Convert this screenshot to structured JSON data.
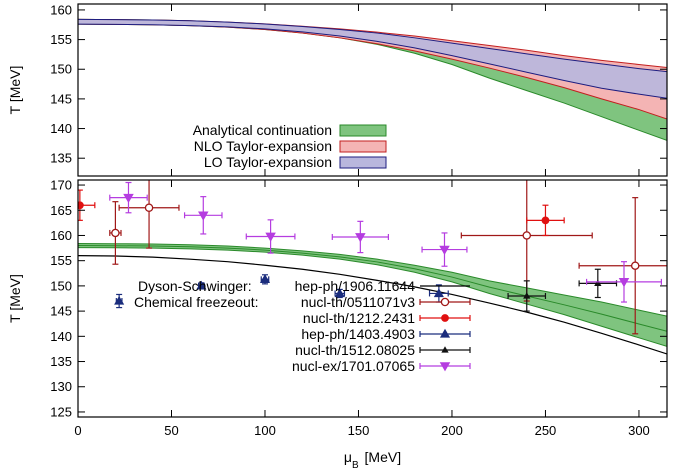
{
  "colors": {
    "ac_fill": "#7fc47f",
    "ac_line": "#2a8a2a",
    "nlo_fill": "#f4b4b4",
    "nlo_line": "#c21f1f",
    "lo_fill": "#b9b7dd",
    "lo_line": "#1d1d80",
    "ds_line": "#000000",
    "series_open_darkred": "#a01818",
    "series_red": "#e01010",
    "series_blue": "#1b2d7d",
    "series_black": "#111111",
    "series_violet": "#b53de0"
  },
  "chart_data": [
    {
      "type": "area",
      "xlim": [
        0,
        315
      ],
      "ylim": [
        132,
        161
      ],
      "yticks": [
        "135",
        "140",
        "145",
        "150",
        "155",
        "160"
      ],
      "xlabel": "",
      "ylabel": "T [MeV]",
      "grid": false,
      "legend_placement": "bottom-center",
      "x": [
        0,
        20,
        40,
        60,
        80,
        100,
        120,
        140,
        160,
        180,
        200,
        220,
        240,
        260,
        280,
        300,
        315
      ],
      "series": [
        {
          "name": "Analytical continuation",
          "lower": [
            157.6,
            157.57,
            157.5,
            157.35,
            157.1,
            156.7,
            156.1,
            155.3,
            154.2,
            152.7,
            150.8,
            148.5,
            146.4,
            144.3,
            142.0,
            139.7,
            138.0
          ],
          "upper": [
            158.4,
            158.37,
            158.3,
            158.15,
            157.9,
            157.5,
            156.95,
            156.25,
            155.3,
            154.1,
            152.7,
            151.0,
            149.6,
            148.2,
            146.8,
            145.2,
            144.0
          ]
        },
        {
          "name": "NLO Taylor-expansion",
          "lower": [
            157.6,
            157.57,
            157.5,
            157.35,
            157.1,
            156.7,
            156.1,
            155.3,
            154.3,
            153.1,
            151.7,
            150.2,
            148.6,
            146.9,
            145.0,
            143.2,
            141.6
          ],
          "upper": [
            158.4,
            158.37,
            158.3,
            158.17,
            157.95,
            157.65,
            157.25,
            156.8,
            156.25,
            155.6,
            154.8,
            154.0,
            153.2,
            152.3,
            151.5,
            150.8,
            150.3
          ]
        },
        {
          "name": "LO Taylor-expansion",
          "lower": [
            157.6,
            157.57,
            157.5,
            157.36,
            157.15,
            156.8,
            156.3,
            155.6,
            154.7,
            153.6,
            152.3,
            150.9,
            149.5,
            148.1,
            146.8,
            145.8,
            145.1
          ],
          "upper": [
            158.4,
            158.37,
            158.3,
            158.17,
            157.95,
            157.63,
            157.2,
            156.7,
            156.1,
            155.3,
            154.4,
            153.5,
            152.6,
            151.7,
            150.9,
            150.1,
            149.6
          ]
        }
      ]
    },
    {
      "type": "scatter",
      "xlim": [
        0,
        315
      ],
      "ylim": [
        124,
        171
      ],
      "xticks": [
        "0",
        "50",
        "100",
        "150",
        "200",
        "250",
        "300"
      ],
      "yticks": [
        "125",
        "130",
        "135",
        "140",
        "145",
        "150",
        "155",
        "160",
        "165",
        "170"
      ],
      "xlabel": "μ_B [MeV]",
      "ylabel": "T [MeV]",
      "grid": false,
      "legend_placement": "bottom-right",
      "band": {
        "x": [
          0,
          20,
          40,
          60,
          80,
          100,
          120,
          140,
          160,
          180,
          200,
          220,
          240,
          260,
          280,
          300,
          315
        ],
        "lower": [
          157.6,
          157.57,
          157.5,
          157.35,
          157.1,
          156.7,
          156.1,
          155.3,
          154.2,
          152.7,
          150.8,
          148.5,
          146.4,
          144.3,
          142.0,
          139.7,
          138.0
        ],
        "upper": [
          158.4,
          158.37,
          158.3,
          158.15,
          157.9,
          157.5,
          156.95,
          156.25,
          155.3,
          154.1,
          152.7,
          151.0,
          149.6,
          148.2,
          146.8,
          145.2,
          144.0
        ],
        "center": [
          158.0,
          157.97,
          157.9,
          157.75,
          157.5,
          157.1,
          156.5,
          155.75,
          154.75,
          153.4,
          151.75,
          149.75,
          148.0,
          146.25,
          144.4,
          142.45,
          141.0
        ]
      },
      "dyson_schwinger": {
        "legend_prefix": "Dyson-Schwinger:",
        "name": "hep-ph/1906.11644",
        "x": [
          0,
          20,
          40,
          60,
          80,
          100,
          120,
          140,
          160,
          180,
          200,
          220,
          240,
          260,
          280,
          300,
          315
        ],
        "y": [
          156.0,
          155.93,
          155.7,
          155.3,
          154.8,
          154.1,
          153.3,
          152.3,
          151.1,
          149.8,
          148.3,
          146.6,
          144.8,
          142.8,
          140.6,
          138.3,
          136.5
        ]
      },
      "legend_group_label": "Chemical freezeout:",
      "series": [
        {
          "name": "nucl-th/0511071v3",
          "marker": "open-circle",
          "points": [
            {
              "x": 20,
              "y": 160.5,
              "xerr": 3,
              "yerr": 6.2
            },
            {
              "x": 38,
              "y": 165.5,
              "xerr": 16,
              "yerr": 8
            },
            {
              "x": 240,
              "y": 160,
              "xerr": 35,
              "yerr": 13
            },
            {
              "x": 298,
              "y": 154,
              "xerr": 30,
              "yerr": 13.5
            }
          ]
        },
        {
          "name": "nucl-th/1212.2431",
          "marker": "filled-circle",
          "points": [
            {
              "x": 1,
              "y": 166,
              "xerr": 8,
              "yerr": 3
            },
            {
              "x": 250,
              "y": 163,
              "xerr": 10,
              "yerr": 3
            }
          ]
        },
        {
          "name": "hep-ph/1403.4903",
          "marker": "filled-triangle-up",
          "points": [
            {
              "x": 22,
              "y": 147,
              "xerr": 1.5,
              "yerr": 1.3
            },
            {
              "x": 66,
              "y": 150,
              "xerr": 1.5,
              "yerr": 0.6
            },
            {
              "x": 100,
              "y": 151.3,
              "xerr": 2,
              "yerr": 0.9
            },
            {
              "x": 140,
              "y": 148.5,
              "xerr": 2.5,
              "yerr": 0.8
            },
            {
              "x": 193,
              "y": 148.5,
              "xerr": 5,
              "yerr": 1.7
            }
          ]
        },
        {
          "name": "nucl-th/1512.08025",
          "marker": "small-triangle-up",
          "points": [
            {
              "x": 240,
              "y": 148,
              "xerr": 10,
              "yerr": 3
            },
            {
              "x": 278,
              "y": 150.5,
              "xerr": 10,
              "yerr": 2.8
            }
          ]
        },
        {
          "name": "nucl-ex/1701.07065",
          "marker": "filled-triangle-down",
          "points": [
            {
              "x": 27,
              "y": 167.5,
              "xerr": 10,
              "yerr": 3
            },
            {
              "x": 67,
              "y": 164,
              "xerr": 10,
              "yerr": 3.7
            },
            {
              "x": 103,
              "y": 159.8,
              "xerr": 13,
              "yerr": 3.3
            },
            {
              "x": 151,
              "y": 159.7,
              "xerr": 15,
              "yerr": 3.1
            },
            {
              "x": 196,
              "y": 157.2,
              "xerr": 12,
              "yerr": 3.3
            },
            {
              "x": 292,
              "y": 150.8,
              "xerr": 20,
              "yerr": 4
            }
          ]
        }
      ]
    }
  ]
}
